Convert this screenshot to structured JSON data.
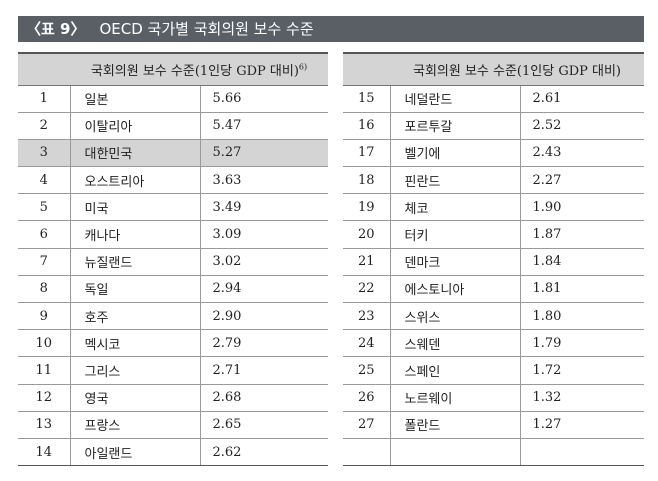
{
  "title": {
    "label": "〈표 9〉",
    "text": "OECD 국가별 국회의원 보수 수준"
  },
  "left_table": {
    "header": "국회의원 보수 수준(1인당 GDP 대비)",
    "header_sup": "6)",
    "rows": [
      {
        "rank": "1",
        "country": "일본",
        "value": "5.66"
      },
      {
        "rank": "2",
        "country": "이탈리아",
        "value": "5.47"
      },
      {
        "rank": "3",
        "country": "대한민국",
        "value": "5.27"
      },
      {
        "rank": "4",
        "country": "오스트리아",
        "value": "3.63"
      },
      {
        "rank": "5",
        "country": "미국",
        "value": "3.49"
      },
      {
        "rank": "6",
        "country": "캐나다",
        "value": "3.09"
      },
      {
        "rank": "7",
        "country": "뉴질랜드",
        "value": "3.02"
      },
      {
        "rank": "8",
        "country": "독일",
        "value": "2.94"
      },
      {
        "rank": "9",
        "country": "호주",
        "value": "2.90"
      },
      {
        "rank": "10",
        "country": "멕시코",
        "value": "2.79"
      },
      {
        "rank": "11",
        "country": "그리스",
        "value": "2.71"
      },
      {
        "rank": "12",
        "country": "영국",
        "value": "2.68"
      },
      {
        "rank": "13",
        "country": "프랑스",
        "value": "2.65"
      },
      {
        "rank": "14",
        "country": "아일랜드",
        "value": "2.62"
      }
    ]
  },
  "right_table": {
    "header": "국회의원 보수 수준(1인당 GDP 대비)",
    "rows": [
      {
        "rank": "15",
        "country": "네덜란드",
        "value": "2.61"
      },
      {
        "rank": "16",
        "country": "포르투갈",
        "value": "2.52"
      },
      {
        "rank": "17",
        "country": "벨기에",
        "value": "2.43"
      },
      {
        "rank": "18",
        "country": "핀란드",
        "value": "2.27"
      },
      {
        "rank": "19",
        "country": "체코",
        "value": "1.90"
      },
      {
        "rank": "20",
        "country": "터키",
        "value": "1.87"
      },
      {
        "rank": "21",
        "country": "덴마크",
        "value": "1.84"
      },
      {
        "rank": "22",
        "country": "에스토니아",
        "value": "1.81"
      },
      {
        "rank": "23",
        "country": "스위스",
        "value": "1.80"
      },
      {
        "rank": "24",
        "country": "스웨덴",
        "value": "1.79"
      },
      {
        "rank": "25",
        "country": "스페인",
        "value": "1.72"
      },
      {
        "rank": "26",
        "country": "노르웨이",
        "value": "1.32"
      },
      {
        "rank": "27",
        "country": "폴란드",
        "value": "1.27"
      },
      {
        "rank": "",
        "country": "",
        "value": ""
      }
    ]
  },
  "highlight_rank": "3"
}
